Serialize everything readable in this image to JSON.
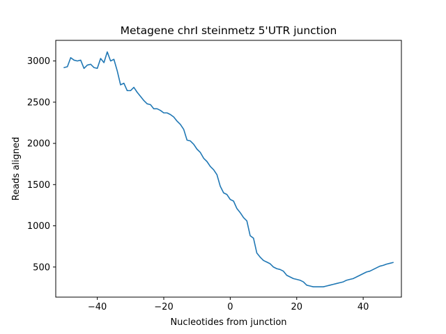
{
  "chart_data": {
    "type": "line",
    "title": "Metagene chrI steinmetz 5'UTR junction",
    "xlabel": "Nucleotides from junction",
    "ylabel": "Reads aligned",
    "xlim": [
      -52.5,
      51.5
    ],
    "ylim": [
      135,
      3250
    ],
    "xticks": [
      -40,
      -20,
      0,
      20,
      40
    ],
    "xtick_labels": [
      "−40",
      "−20",
      "0",
      "20",
      "40"
    ],
    "yticks": [
      500,
      1000,
      1500,
      2000,
      2500,
      3000
    ],
    "ytick_labels": [
      "500",
      "1000",
      "1500",
      "2000",
      "2500",
      "3000"
    ],
    "grid": false,
    "series": [
      {
        "color": "#1f77b4",
        "x": [
          -50,
          -49,
          -48,
          -47,
          -46,
          -45,
          -44,
          -43,
          -42,
          -41,
          -40,
          -39,
          -38,
          -37,
          -36,
          -35,
          -34,
          -33,
          -32,
          -31,
          -30,
          -29,
          -28,
          -27,
          -26,
          -25,
          -24,
          -23,
          -22,
          -21,
          -20,
          -19,
          -18,
          -17,
          -16,
          -15,
          -14,
          -13,
          -12,
          -11,
          -10,
          -9,
          -8,
          -7,
          -6,
          -5,
          -4,
          -3,
          -2,
          -1,
          0,
          1,
          2,
          3,
          4,
          5,
          6,
          7,
          8,
          9,
          10,
          11,
          12,
          13,
          14,
          15,
          16,
          17,
          18,
          19,
          20,
          21,
          22,
          23,
          24,
          25,
          26,
          27,
          28,
          29,
          30,
          31,
          32,
          33,
          34,
          35,
          36,
          37,
          38,
          39,
          40,
          41,
          42,
          43,
          44,
          45,
          46,
          47,
          48,
          49
        ],
        "y": [
          2920,
          2930,
          3040,
          3010,
          3000,
          3010,
          2910,
          2950,
          2960,
          2920,
          2910,
          3030,
          2980,
          3110,
          3000,
          3020,
          2880,
          2710,
          2730,
          2640,
          2640,
          2680,
          2620,
          2570,
          2520,
          2480,
          2470,
          2420,
          2420,
          2400,
          2370,
          2370,
          2350,
          2320,
          2270,
          2230,
          2170,
          2040,
          2030,
          1990,
          1930,
          1890,
          1820,
          1780,
          1720,
          1680,
          1620,
          1480,
          1400,
          1380,
          1320,
          1300,
          1210,
          1160,
          1100,
          1060,
          880,
          850,
          670,
          620,
          580,
          560,
          540,
          500,
          480,
          470,
          450,
          400,
          380,
          360,
          350,
          340,
          320,
          280,
          270,
          260,
          260,
          260,
          260,
          270,
          280,
          290,
          300,
          310,
          320,
          340,
          350,
          360,
          380,
          400,
          420,
          440,
          450,
          470,
          490,
          510,
          520,
          535,
          545,
          555
        ]
      }
    ]
  }
}
